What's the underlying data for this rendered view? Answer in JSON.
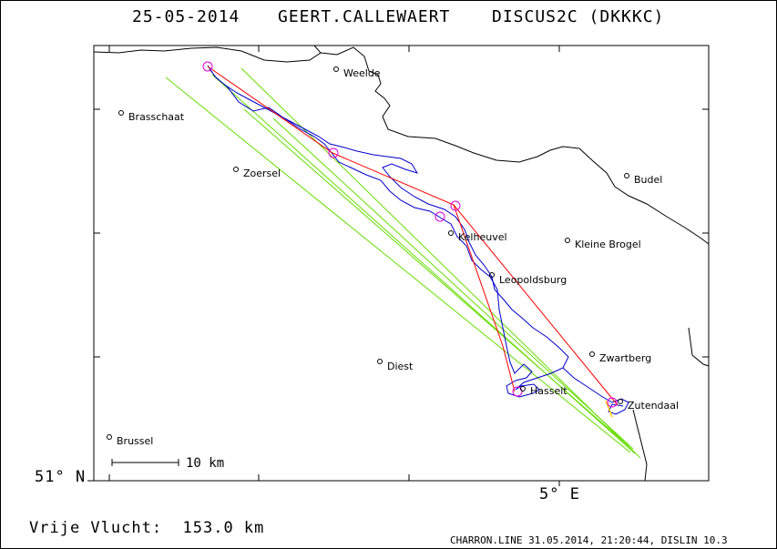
{
  "title": {
    "date": "25-05-2014",
    "pilot": "GEERT.CALLEWAERT",
    "glider": "DISCUS2C (DKKKC)"
  },
  "axes": {
    "lat_label": "51° N",
    "lon_label": "5° E"
  },
  "scale_bar": {
    "label": "10 km"
  },
  "footer": {
    "distance": "Vrije Vlucht:  153.0 km",
    "software": "CHARRON.LINE 31.05.2014, 21:20:44, DISLIN 10.3"
  },
  "places": [
    {
      "name": "Weelde"
    },
    {
      "name": "Brasschaat"
    },
    {
      "name": "Zoersel"
    },
    {
      "name": "Budel"
    },
    {
      "name": "Kelheuvel"
    },
    {
      "name": "Kleine Brogel"
    },
    {
      "name": "Leopoldsburg"
    },
    {
      "name": "Zwartberg"
    },
    {
      "name": "Diest"
    },
    {
      "name": "Hasselt"
    },
    {
      "name": "Zutendaal"
    },
    {
      "name": "Brussel"
    }
  ],
  "colors": {
    "border_line": "#000000",
    "track": "#0000cc",
    "task_line": "#ff0000",
    "sector_lines": "#66dd00",
    "turnpoint_circles": "#dd00dd",
    "finish_segment": "#ffcc00"
  }
}
